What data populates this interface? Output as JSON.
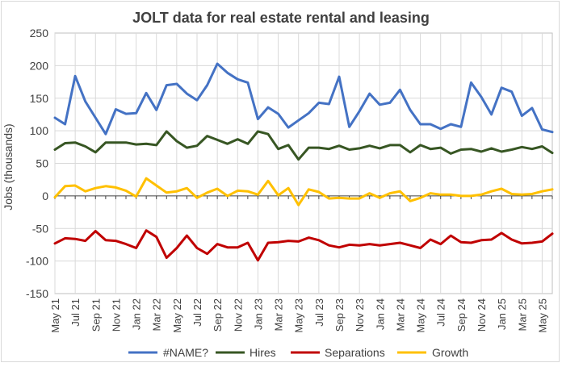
{
  "chart_data": {
    "type": "line",
    "title": "JOLT data for real estate rental and leasing",
    "xlabel": "",
    "ylabel": "Jobs (thousands)",
    "ylim": [
      -150,
      250
    ],
    "yticks": [
      -150,
      -100,
      -50,
      0,
      50,
      100,
      150,
      200,
      250
    ],
    "grid": true,
    "legend_position": "bottom",
    "x": [
      "May 21",
      "Jun 21",
      "Jul 21",
      "Aug 21",
      "Sep 21",
      "Oct 21",
      "Nov 21",
      "Dec 21",
      "Jan 22",
      "Feb 22",
      "Mar 22",
      "Apr 22",
      "May 22",
      "Jun 22",
      "Jul 22",
      "Aug 22",
      "Sep 22",
      "Oct 22",
      "Nov 22",
      "Dec 22",
      "Jan 23",
      "Feb 23",
      "Mar 23",
      "Apr 23",
      "May 23",
      "Jun 23",
      "Jul 23",
      "Aug 23",
      "Sep 23",
      "Oct 23",
      "Nov 23",
      "Dec 23",
      "Jan 24",
      "Feb 24",
      "Mar 24",
      "Apr 24",
      "May 24",
      "Jun 24",
      "Jul 24",
      "Aug 24",
      "Sep 24",
      "Oct 24",
      "Nov 24",
      "Dec 24",
      "Jan 25",
      "Feb 25",
      "Mar 25",
      "Apr 25",
      "May 25",
      "Jun 25"
    ],
    "x_tick_labels": [
      "May 21",
      "Jul 21",
      "Sep 21",
      "Nov 21",
      "Jan 22",
      "Mar 22",
      "May 22",
      "Jul 22",
      "Sep 22",
      "Nov 22",
      "Jan 23",
      "Mar 23",
      "May 23",
      "Jul 23",
      "Sep 23",
      "Nov 23",
      "Jan 24",
      "Mar 24",
      "May 24",
      "Jul 24",
      "Sep 24",
      "Nov 24",
      "Jan 25",
      "Mar 25",
      "May 25"
    ],
    "series": [
      {
        "name": "#NAME?",
        "color": "#4472C4",
        "values": [
          120,
          110,
          184,
          145,
          120,
          95,
          133,
          126,
          127,
          158,
          132,
          170,
          172,
          157,
          147,
          170,
          203,
          189,
          179,
          174,
          118,
          136,
          126,
          105,
          116,
          127,
          143,
          141,
          183,
          106,
          130,
          157,
          140,
          143,
          163,
          132,
          110,
          110,
          103,
          110,
          106,
          174,
          152,
          125,
          166,
          160,
          123,
          135,
          102,
          98
        ]
      },
      {
        "name": "Hires",
        "color": "#375623",
        "values": [
          71,
          81,
          82,
          76,
          67,
          82,
          82,
          82,
          79,
          80,
          78,
          99,
          84,
          74,
          77,
          92,
          86,
          80,
          87,
          80,
          99,
          95,
          72,
          78,
          56,
          74,
          74,
          72,
          77,
          71,
          73,
          77,
          73,
          78,
          78,
          67,
          78,
          72,
          74,
          65,
          71,
          72,
          68,
          73,
          68,
          71,
          75,
          72,
          76,
          66
        ]
      },
      {
        "name": "Separations",
        "color": "#C00000",
        "values": [
          -73,
          -65,
          -66,
          -69,
          -54,
          -68,
          -69,
          -74,
          -80,
          -53,
          -63,
          -95,
          -80,
          -61,
          -80,
          -89,
          -74,
          -79,
          -79,
          -72,
          -99,
          -72,
          -71,
          -69,
          -70,
          -64,
          -68,
          -76,
          -79,
          -75,
          -76,
          -74,
          -76,
          -74,
          -72,
          -76,
          -80,
          -67,
          -74,
          -61,
          -71,
          -72,
          -68,
          -67,
          -57,
          -67,
          -73,
          -72,
          -70,
          -58
        ]
      },
      {
        "name": "Growth",
        "color": "#FFC000",
        "values": [
          -2,
          15,
          16,
          7,
          12,
          15,
          13,
          8,
          -1,
          27,
          16,
          5,
          7,
          12,
          -3,
          5,
          11,
          0,
          8,
          7,
          2,
          23,
          1,
          12,
          -14,
          10,
          6,
          -4,
          -3,
          -4,
          -4,
          4,
          -3,
          4,
          7,
          -8,
          -3,
          4,
          2,
          2,
          0,
          0,
          2,
          7,
          11,
          3,
          2,
          3,
          7,
          10
        ]
      }
    ]
  }
}
